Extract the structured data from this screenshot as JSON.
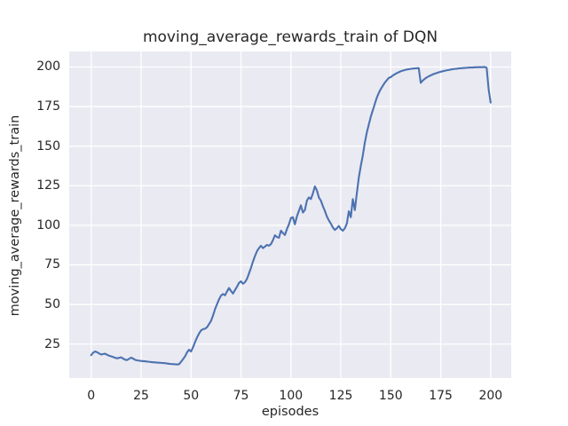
{
  "figure": {
    "title": "moving_average_rewards_train of DQN",
    "xlabel": "episodes",
    "ylabel": "moving_average_rewards_train"
  },
  "chart_data": {
    "type": "line",
    "title": "moving_average_rewards_train of DQN",
    "xlabel": "episodes",
    "ylabel": "moving_average_rewards_train",
    "x_is_index": true,
    "x_range": [
      0,
      200
    ],
    "xlim": [
      -11,
      210.3
    ],
    "ylim": [
      3.5,
      209.8
    ],
    "xticks": [
      0,
      25,
      50,
      75,
      100,
      125,
      150,
      175,
      200
    ],
    "yticks": [
      25,
      50,
      75,
      100,
      125,
      150,
      175,
      200
    ],
    "grid": true,
    "legend": false,
    "style": {
      "line_color": "#4c72b0",
      "line_width": 2.1,
      "axes_bg": "#eaeaf2",
      "grid_color": "#ffffff",
      "fig_bg": "#ffffff",
      "text_color": "#262626"
    },
    "series": [
      {
        "name": "moving_average_rewards_train",
        "values": [
          18.0,
          19.6,
          20.3,
          19.8,
          19.0,
          18.4,
          18.7,
          18.9,
          18.2,
          17.6,
          17.2,
          16.8,
          16.3,
          16.0,
          16.3,
          16.6,
          15.8,
          15.1,
          14.9,
          15.7,
          16.4,
          15.8,
          15.0,
          14.7,
          14.5,
          14.3,
          14.2,
          14.1,
          13.9,
          13.8,
          13.6,
          13.5,
          13.4,
          13.3,
          13.2,
          13.1,
          13.0,
          12.9,
          12.7,
          12.5,
          12.4,
          12.3,
          12.2,
          12.1,
          12.3,
          13.8,
          15.5,
          17.2,
          19.8,
          21.4,
          20.3,
          23.0,
          26.2,
          29.2,
          31.6,
          33.6,
          34.4,
          34.7,
          35.6,
          37.6,
          39.6,
          43.0,
          47.0,
          50.2,
          53.2,
          55.6,
          56.6,
          55.8,
          58.2,
          60.4,
          58.5,
          56.9,
          59.1,
          61.2,
          63.6,
          64.6,
          63.1,
          64.1,
          66.1,
          69.6,
          73.1,
          77.1,
          80.6,
          83.6,
          85.6,
          87.1,
          85.6,
          86.6,
          87.6,
          87.1,
          88.1,
          90.6,
          93.7,
          92.6,
          92.1,
          96.6,
          95.1,
          93.9,
          97.6,
          100.6,
          104.6,
          105.1,
          100.6,
          105.6,
          109.1,
          112.6,
          108.1,
          109.6,
          115.6,
          117.6,
          116.6,
          120.1,
          124.6,
          122.1,
          117.6,
          115.6,
          112.1,
          109.1,
          105.6,
          103.1,
          101.1,
          98.6,
          97.1,
          98.1,
          99.6,
          97.6,
          96.6,
          98.1,
          101.1,
          108.9,
          105.1,
          116.6,
          109.6,
          120.1,
          130.1,
          137.6,
          144.1,
          152.1,
          158.6,
          163.6,
          168.6,
          172.6,
          176.6,
          180.6,
          183.6,
          186.1,
          188.1,
          190.1,
          191.6,
          193.1,
          193.6,
          194.6,
          195.4,
          196.1,
          196.7,
          197.3,
          197.7,
          198.1,
          198.4,
          198.6,
          198.8,
          199.0,
          199.1,
          199.2,
          199.3,
          190.0,
          191.4,
          192.5,
          193.4,
          194.1,
          194.7,
          195.3,
          195.8,
          196.2,
          196.6,
          197.0,
          197.3,
          197.6,
          197.9,
          198.1,
          198.4,
          198.6,
          198.8,
          198.9,
          199.1,
          199.2,
          199.3,
          199.4,
          199.5,
          199.6,
          199.7,
          199.7,
          199.8,
          199.8,
          199.9,
          199.9,
          199.9,
          200.0,
          199.5,
          186.0,
          177.5
        ]
      }
    ]
  }
}
